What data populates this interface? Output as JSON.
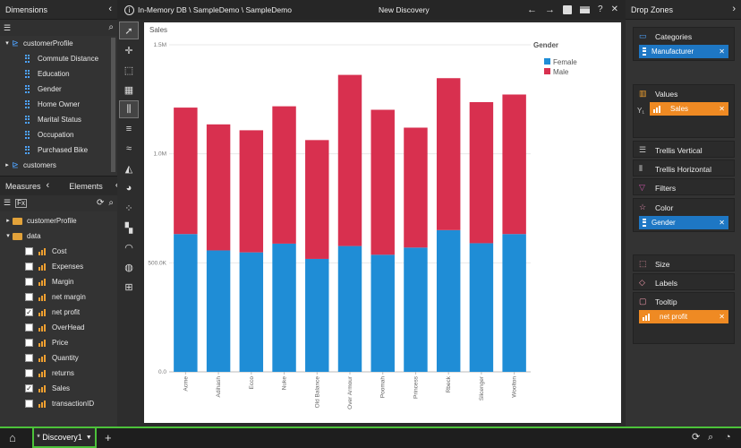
{
  "left_panel": {
    "dimensions_title": "Dimensions",
    "dimension_root": "customerProfile",
    "dimension_fields": [
      "Commute Distance",
      "Education",
      "Gender",
      "Home Owner",
      "Marital Status",
      "Occupation",
      "Purchased Bike"
    ],
    "dimension_next": "customers",
    "measures_tab": "Measures",
    "elements_tab": "Elements",
    "measure_folders": [
      "customerProfile",
      "data"
    ],
    "measures": [
      {
        "label": "Cost",
        "checked": false
      },
      {
        "label": "Expenses",
        "checked": false
      },
      {
        "label": "Margin",
        "checked": false
      },
      {
        "label": "net margin",
        "checked": false
      },
      {
        "label": "net profit",
        "checked": true
      },
      {
        "label": "OverHead",
        "checked": false
      },
      {
        "label": "Price",
        "checked": false
      },
      {
        "label": "Quantity",
        "checked": false
      },
      {
        "label": "returns",
        "checked": false
      },
      {
        "label": "Sales",
        "checked": true
      },
      {
        "label": "transactionID",
        "checked": false
      }
    ]
  },
  "topbar": {
    "breadcrumb": "In-Memory DB \\ SampleDemo \\ SampleDemo",
    "title": "New Discovery"
  },
  "right_panel": {
    "title": "Drop Zones",
    "categories": {
      "label": "Categories",
      "pill": "Manufacturer"
    },
    "values": {
      "label": "Values",
      "pill": "Sales",
      "prefix": "Y₁"
    },
    "trellis_vertical": "Trellis Vertical",
    "trellis_horizontal": "Trellis Horizontal",
    "filters": "Filters",
    "color": {
      "label": "Color",
      "pill": "Gender"
    },
    "size": "Size",
    "labels": "Labels",
    "tooltip": {
      "label": "Tooltip",
      "pill": "net profit"
    }
  },
  "bottom": {
    "tab_label": "* Discovery1",
    "add_symbol": "+"
  },
  "chart_data": {
    "type": "bar",
    "stacked": true,
    "ylabel": "Sales",
    "ylim": [
      0,
      1500000
    ],
    "yticks": [
      "0.0",
      "500.0K",
      "1.0M",
      "1.5M"
    ],
    "ytick_values": [
      0,
      500000,
      1000000,
      1500000
    ],
    "legend_title": "Gender",
    "legend_position": "top-right",
    "categories": [
      "Acme",
      "Adihash",
      "Ecco",
      "Nuke",
      "Old Balance",
      "Over Armour",
      "Poomah",
      "Princess",
      "Rbeck",
      "Slicenger",
      "Woolton"
    ],
    "series": [
      {
        "name": "Female",
        "color": "#1f8dd6",
        "values": [
          632000,
          557000,
          548000,
          588000,
          518000,
          577000,
          537000,
          570000,
          650000,
          590000,
          632000
        ]
      },
      {
        "name": "Male",
        "color": "#d8304f",
        "values": [
          580000,
          578000,
          560000,
          630000,
          545000,
          785000,
          665000,
          550000,
          697000,
          647000,
          640000
        ]
      }
    ]
  }
}
